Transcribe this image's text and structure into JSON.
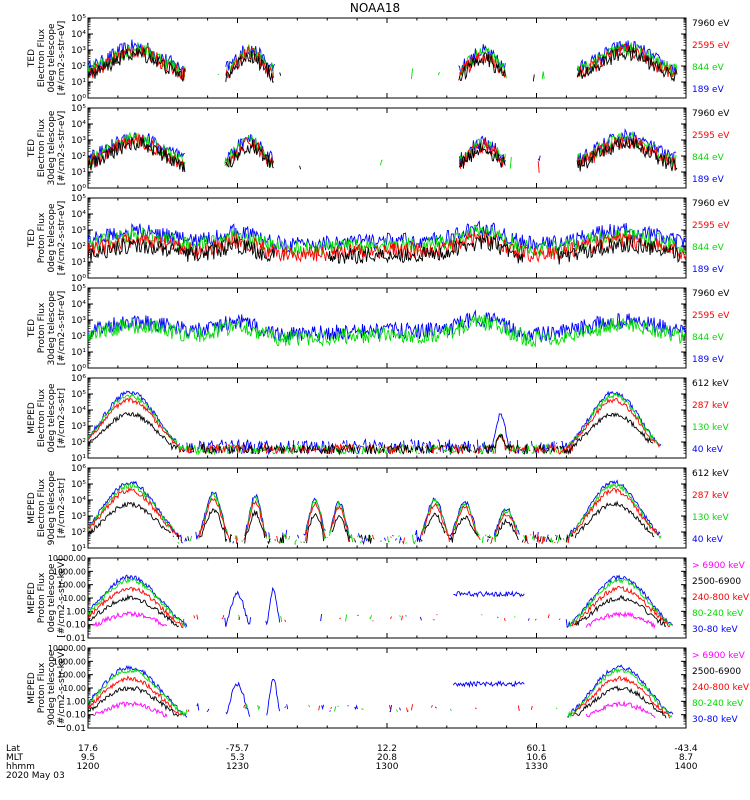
{
  "title": "NOAA18",
  "colors": {
    "black": "#000000",
    "blue": "#0000ff",
    "red": "#ff0000",
    "green": "#00dd00",
    "magenta": "#ff00ff"
  },
  "chart_data": [
    {
      "type": "line",
      "ylabel": [
        "TED",
        "Electron Flux",
        "0deg telescope",
        "[#/cm2-s-str-eV]"
      ],
      "yscale": "log",
      "ylim": [
        1,
        100000
      ],
      "yticks": [
        "10⁰",
        "10¹",
        "10²",
        "10³",
        "10⁴",
        "10⁵"
      ],
      "legend": [
        {
          "label": "7960 eV",
          "color": "black"
        },
        {
          "label": "2595 eV",
          "color": "red"
        },
        {
          "label": "844 eV",
          "color": "green"
        },
        {
          "label": "189 eV",
          "color": "blue"
        }
      ]
    },
    {
      "type": "line",
      "ylabel": [
        "TED",
        "Electron Flux",
        "30deg telescope",
        "[#/cm2-s-str-eV]"
      ],
      "yscale": "log",
      "ylim": [
        1,
        100000
      ],
      "yticks": [
        "10⁰",
        "10¹",
        "10²",
        "10³",
        "10⁴",
        "10⁵"
      ],
      "legend": [
        {
          "label": "7960 eV",
          "color": "black"
        },
        {
          "label": "2595 eV",
          "color": "red"
        },
        {
          "label": "844 eV",
          "color": "green"
        },
        {
          "label": "189 eV",
          "color": "blue"
        }
      ]
    },
    {
      "type": "line",
      "ylabel": [
        "TED",
        "Proton Flux",
        "0deg telescope",
        "[#/cm2-s-str-eV]"
      ],
      "yscale": "log",
      "ylim": [
        1,
        100000
      ],
      "yticks": [
        "10⁰",
        "10¹",
        "10²",
        "10³",
        "10⁴",
        "10⁵"
      ],
      "legend": [
        {
          "label": "7960 eV",
          "color": "black"
        },
        {
          "label": "2595 eV",
          "color": "red"
        },
        {
          "label": "844 eV",
          "color": "green"
        },
        {
          "label": "189 eV",
          "color": "blue"
        }
      ]
    },
    {
      "type": "line",
      "ylabel": [
        "TED",
        "Proton Flux",
        "30deg telescope",
        "[#/cm2-s-str-eV]"
      ],
      "yscale": "log",
      "ylim": [
        1,
        100000
      ],
      "yticks": [
        "10⁰",
        "10¹",
        "10²",
        "10³",
        "10⁴",
        "10⁵"
      ],
      "legend": [
        {
          "label": "7960 eV",
          "color": "black"
        },
        {
          "label": "2595 eV",
          "color": "red"
        },
        {
          "label": "844 eV",
          "color": "green"
        },
        {
          "label": "189 eV",
          "color": "blue"
        }
      ]
    },
    {
      "type": "line",
      "ylabel": [
        "MEPED",
        "Electron Flux",
        "0deg telescope",
        "[#/cm2-s-str]"
      ],
      "yscale": "log",
      "ylim": [
        10,
        1000000
      ],
      "yticks": [
        "10¹",
        "10²",
        "10³",
        "10⁴",
        "10⁵",
        "10⁶"
      ],
      "legend": [
        {
          "label": "612 keV",
          "color": "black"
        },
        {
          "label": "287 keV",
          "color": "red"
        },
        {
          "label": "130 keV",
          "color": "green"
        },
        {
          "label": "40 keV",
          "color": "blue"
        }
      ]
    },
    {
      "type": "line",
      "ylabel": [
        "MEPED",
        "Electron Flux",
        "90deg telescope",
        "[#/cm2-s-str]"
      ],
      "yscale": "log",
      "ylim": [
        10,
        1000000
      ],
      "yticks": [
        "10¹",
        "10²",
        "10³",
        "10⁴",
        "10⁵",
        "10⁶"
      ],
      "legend": [
        {
          "label": "612 keV",
          "color": "black"
        },
        {
          "label": "287 keV",
          "color": "red"
        },
        {
          "label": "130 keV",
          "color": "green"
        },
        {
          "label": "40 keV",
          "color": "blue"
        }
      ]
    },
    {
      "type": "line",
      "ylabel": [
        "MEPED",
        "Proton Flux",
        "0deg telescope",
        "[#/cm2-s-str-keV]"
      ],
      "yscale": "log",
      "ylim": [
        0.01,
        10000
      ],
      "yticks": [
        "0.01",
        "0.10",
        "1.00",
        "10.00",
        "100.00",
        "1000.00",
        "10000.00"
      ],
      "legend": [
        {
          "label": "> 6900 keV",
          "color": "magenta"
        },
        {
          "label": "2500-6900",
          "color": "black"
        },
        {
          "label": "240-800 keV",
          "color": "red"
        },
        {
          "label": "80-240 keV",
          "color": "green"
        },
        {
          "label": "30-80 keV",
          "color": "blue"
        }
      ]
    },
    {
      "type": "line",
      "ylabel": [
        "MEPED",
        "Proton Flux",
        "90deg telescope",
        "[#/cm2-s-str-keV]"
      ],
      "yscale": "log",
      "ylim": [
        0.01,
        10000
      ],
      "yticks": [
        "0.01",
        "0.10",
        "1.00",
        "10.00",
        "100.00",
        "1000.00",
        "10000.00"
      ],
      "legend": [
        {
          "label": "> 6900 keV",
          "color": "magenta"
        },
        {
          "label": "2500-6900",
          "color": "black"
        },
        {
          "label": "240-800 keV",
          "color": "red"
        },
        {
          "label": "80-240 keV",
          "color": "green"
        },
        {
          "label": "30-80 keV",
          "color": "blue"
        }
      ]
    }
  ],
  "xaxis": {
    "row_labels": [
      "Lat",
      "MLT",
      "hhmm"
    ],
    "date": "2020 May 03",
    "ticks": [
      {
        "lat": "17.6",
        "mlt": "9.5",
        "hhmm": "1200"
      },
      {
        "lat": "-75.7",
        "mlt": "5.3",
        "hhmm": "1230"
      },
      {
        "lat": "12.2",
        "mlt": "20.8",
        "hhmm": "1300"
      },
      {
        "lat": "60.1",
        "mlt": "10.6",
        "hhmm": "1330"
      },
      {
        "lat": "-43.4",
        "mlt": "8.7",
        "hhmm": "1400"
      }
    ]
  }
}
